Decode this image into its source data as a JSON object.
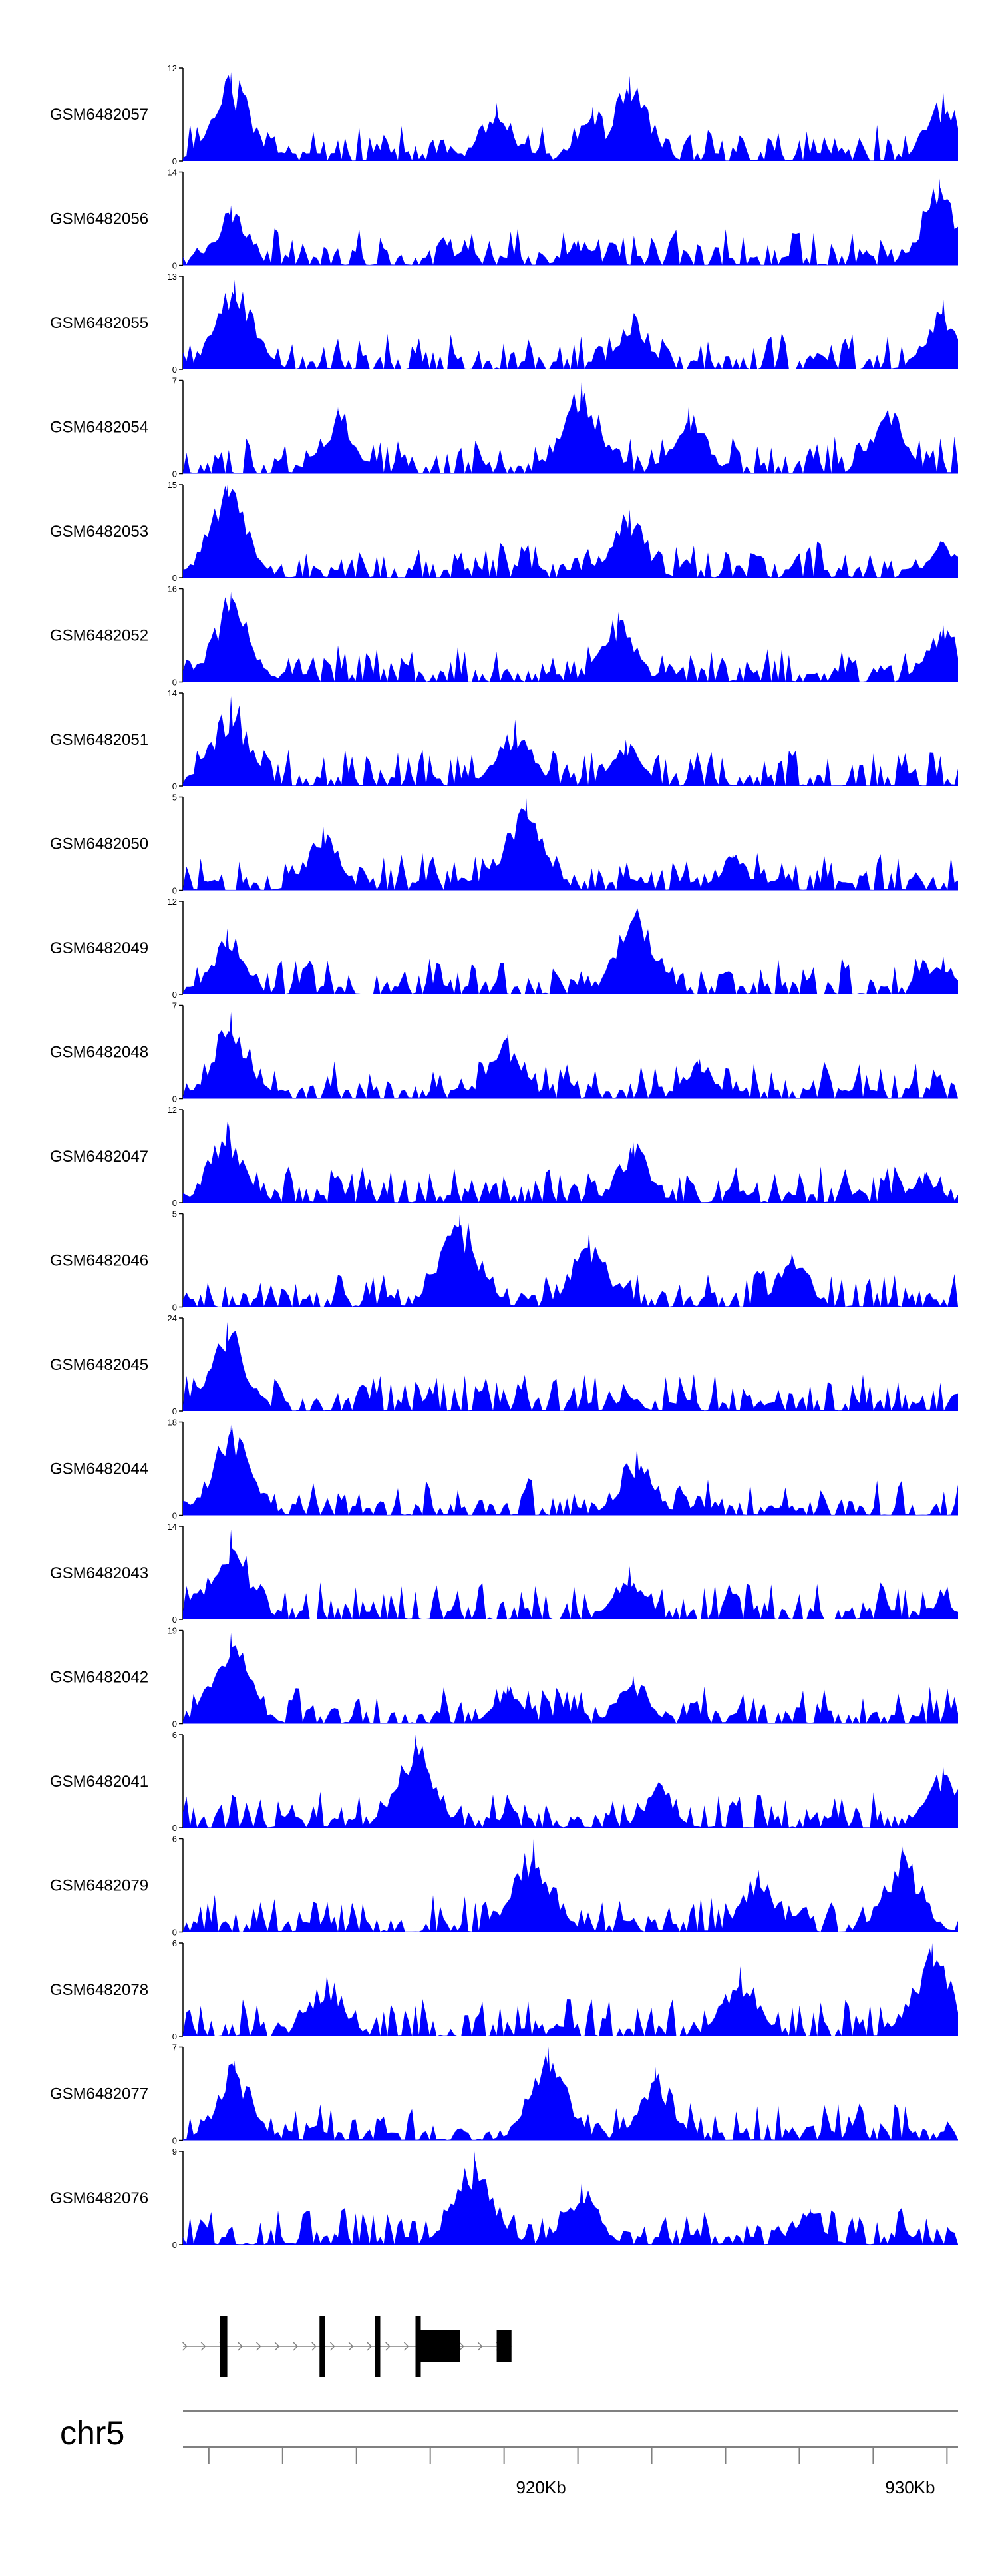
{
  "chart_data": {
    "type": "area",
    "title": "",
    "chromosome": "chr5",
    "x_unit": "Kb",
    "x_major_ticks": [
      {
        "value": 920,
        "label": "920Kb"
      },
      {
        "value": 930,
        "label": "930Kb"
      }
    ],
    "xlim_kb": [
      910.3,
      931.3
    ],
    "colors": {
      "signal": "#0000ff",
      "axis": "#000000",
      "ruler": "#808080"
    },
    "tracks": [
      {
        "name": "GSM6482057",
        "ymax": 12,
        "ymax_label": "12",
        "ymin_label": "0",
        "peaks": [
          [
            911.6,
            11.5
          ],
          [
            918.8,
            7.5
          ],
          [
            921.4,
            7
          ],
          [
            922.4,
            11
          ],
          [
            930.9,
            9
          ]
        ]
      },
      {
        "name": "GSM6482056",
        "ymax": 14,
        "ymax_label": "14",
        "ymin_label": "0",
        "peaks": [
          [
            911.6,
            9
          ],
          [
            921.0,
            4
          ],
          [
            930.4,
            6
          ],
          [
            930.8,
            13
          ]
        ]
      },
      {
        "name": "GSM6482055",
        "ymax": 13,
        "ymax_label": "13",
        "ymin_label": "0",
        "peaks": [
          [
            911.7,
            12.5
          ],
          [
            922.5,
            8
          ],
          [
            930.9,
            10
          ]
        ]
      },
      {
        "name": "GSM6482054",
        "ymax": 7,
        "ymax_label": "7",
        "ymin_label": "0",
        "peaks": [
          [
            914.5,
            5
          ],
          [
            921.1,
            7
          ],
          [
            924.0,
            5
          ],
          [
            929.4,
            5
          ]
        ]
      },
      {
        "name": "GSM6482053",
        "ymax": 15,
        "ymax_label": "15",
        "ymin_label": "0",
        "peaks": [
          [
            911.5,
            15
          ],
          [
            922.4,
            11
          ],
          [
            930.9,
            6
          ]
        ]
      },
      {
        "name": "GSM6482052",
        "ymax": 16,
        "ymax_label": "16",
        "ymin_label": "0",
        "peaks": [
          [
            911.6,
            15.5
          ],
          [
            922.1,
            12
          ],
          [
            930.9,
            10
          ]
        ]
      },
      {
        "name": "GSM6482051",
        "ymax": 14,
        "ymax_label": "14",
        "ymin_label": "0",
        "peaks": [
          [
            911.6,
            13.5
          ],
          [
            919.3,
            10
          ],
          [
            922.3,
            7
          ]
        ]
      },
      {
        "name": "GSM6482050",
        "ymax": 5,
        "ymax_label": "5",
        "ymin_label": "0",
        "peaks": [
          [
            914.1,
            3.5
          ],
          [
            919.6,
            5
          ],
          [
            925.2,
            2
          ]
        ]
      },
      {
        "name": "GSM6482049",
        "ymax": 12,
        "ymax_label": "12",
        "ymin_label": "0",
        "peaks": [
          [
            911.5,
            8.5
          ],
          [
            922.6,
            11.5
          ],
          [
            930.9,
            5
          ]
        ]
      },
      {
        "name": "GSM6482048",
        "ymax": 7,
        "ymax_label": "7",
        "ymin_label": "0",
        "peaks": [
          [
            911.6,
            6.5
          ],
          [
            919.1,
            5
          ],
          [
            924.3,
            3
          ]
        ]
      },
      {
        "name": "GSM6482047",
        "ymax": 12,
        "ymax_label": "12",
        "ymin_label": "0",
        "peaks": [
          [
            911.5,
            10.5
          ],
          [
            922.5,
            8
          ],
          [
            930.4,
            4
          ]
        ]
      },
      {
        "name": "GSM6482046",
        "ymax": 5,
        "ymax_label": "5",
        "ymin_label": "0",
        "peaks": [
          [
            917.8,
            5
          ],
          [
            921.3,
            4
          ],
          [
            926.8,
            3
          ]
        ]
      },
      {
        "name": "GSM6482045",
        "ymax": 24,
        "ymax_label": "24",
        "ymin_label": "0",
        "peaks": [
          [
            911.5,
            23
          ],
          [
            922.3,
            4
          ],
          [
            926.0,
            1.5
          ]
        ]
      },
      {
        "name": "GSM6482044",
        "ymax": 18,
        "ymax_label": "18",
        "ymin_label": "0",
        "peaks": [
          [
            911.6,
            17.5
          ],
          [
            922.6,
            13
          ],
          [
            926.5,
            2
          ]
        ]
      },
      {
        "name": "GSM6482043",
        "ymax": 14,
        "ymax_label": "14",
        "ymin_label": "0",
        "peaks": [
          [
            911.6,
            13.5
          ],
          [
            922.4,
            8
          ],
          [
            930.8,
            3
          ]
        ]
      },
      {
        "name": "GSM6482042",
        "ymax": 19,
        "ymax_label": "19",
        "ymin_label": "0",
        "peaks": [
          [
            911.6,
            18.5
          ],
          [
            919.1,
            8
          ],
          [
            922.5,
            10
          ]
        ]
      },
      {
        "name": "GSM6482041",
        "ymax": 6,
        "ymax_label": "6",
        "ymin_label": "0",
        "peaks": [
          [
            916.6,
            6
          ],
          [
            923.2,
            3
          ],
          [
            930.9,
            4
          ]
        ]
      },
      {
        "name": "GSM6482079",
        "ymax": 6,
        "ymax_label": "6",
        "ymin_label": "0",
        "peaks": [
          [
            919.8,
            6
          ],
          [
            929.8,
            5.5
          ],
          [
            925.9,
            4
          ]
        ]
      },
      {
        "name": "GSM6482078",
        "ymax": 6,
        "ymax_label": "6",
        "ymin_label": "0",
        "peaks": [
          [
            914.2,
            4
          ],
          [
            925.4,
            4.5
          ],
          [
            930.6,
            6
          ]
        ]
      },
      {
        "name": "GSM6482077",
        "ymax": 7,
        "ymax_label": "7",
        "ymin_label": "0",
        "peaks": [
          [
            911.7,
            6
          ],
          [
            920.2,
            7
          ],
          [
            923.1,
            5.5
          ]
        ]
      },
      {
        "name": "GSM6482076",
        "ymax": 9,
        "ymax_label": "9",
        "ymin_label": "0",
        "peaks": [
          [
            918.2,
            9
          ],
          [
            921.1,
            6
          ],
          [
            927.3,
            3.5
          ]
        ]
      }
    ],
    "gene_model": {
      "intron_start_kb": 910.3,
      "intron_end_kb": 919.2,
      "exons_kb": [
        [
          911.3,
          911.5
        ],
        [
          914.0,
          914.1
        ],
        [
          915.5,
          915.6
        ],
        [
          916.6,
          916.7
        ],
        [
          916.7,
          917.8
        ],
        [
          918.8,
          919.2
        ]
      ]
    }
  }
}
